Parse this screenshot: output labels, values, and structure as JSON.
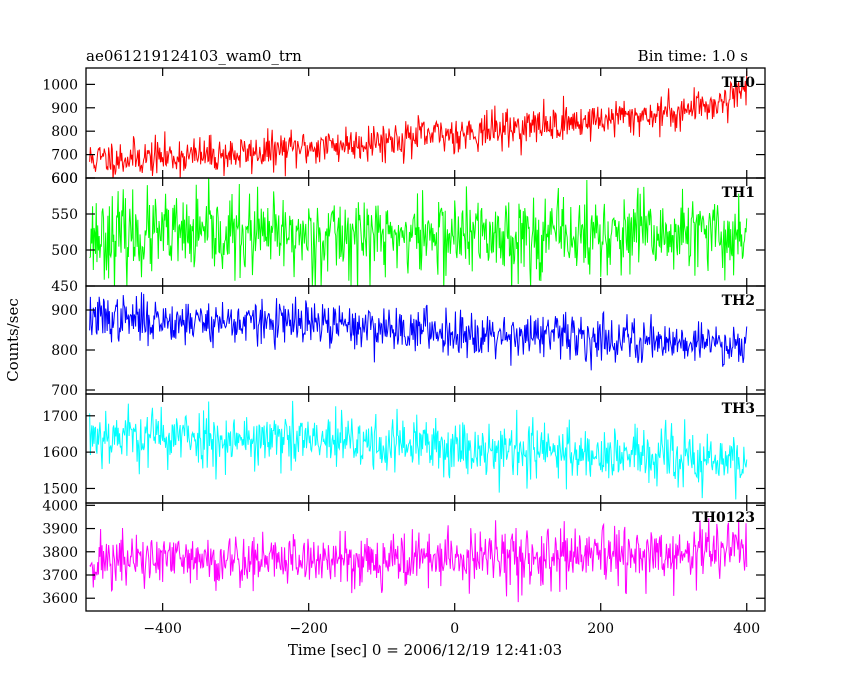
{
  "header": {
    "left_title": "ae061219124103_wam0_trn",
    "right_title": "Bin time: 1.0 s"
  },
  "chart_data": {
    "type": "line",
    "xlabel": "Time [sec] 0 = 2006/12/19 12:41:03",
    "ylabel": "Counts/sec",
    "xlim": [
      -505,
      425
    ],
    "x_ticks": [
      -400,
      -200,
      0,
      200,
      400
    ],
    "x_tick_labels": [
      "−400",
      "−200",
      "0",
      "200",
      "400"
    ],
    "x_range": [
      -500,
      400
    ],
    "bin_time_s": 1.0,
    "panels": [
      {
        "name": "TH0",
        "color": "#ff0000",
        "ylim": [
          600,
          1070
        ],
        "ticks": [
          600,
          700,
          800,
          900,
          1000
        ],
        "trend": [
          [
            -500,
            680
          ],
          [
            -300,
            700
          ],
          [
            -100,
            760
          ],
          [
            100,
            820
          ],
          [
            300,
            880
          ],
          [
            370,
            930
          ],
          [
            400,
            1000
          ]
        ],
        "noise": 40,
        "seed": 11
      },
      {
        "name": "TH1",
        "color": "#00ff00",
        "ylim": [
          450,
          600
        ],
        "ticks": [
          450,
          500,
          550,
          600
        ],
        "trend": [
          [
            -500,
            520
          ],
          [
            400,
            520
          ]
        ],
        "noise": 28,
        "seed": 23
      },
      {
        "name": "TH2",
        "color": "#0000ff",
        "ylim": [
          690,
          960
        ],
        "ticks": [
          700,
          800,
          900
        ],
        "trend": [
          [
            -500,
            880
          ],
          [
            -200,
            865
          ],
          [
            0,
            845
          ],
          [
            200,
            830
          ],
          [
            400,
            815
          ]
        ],
        "noise": 28,
        "seed": 37
      },
      {
        "name": "TH3",
        "color": "#00ffff",
        "ylim": [
          1460,
          1760
        ],
        "ticks": [
          1500,
          1600,
          1700
        ],
        "trend": [
          [
            -500,
            1650
          ],
          [
            -200,
            1630
          ],
          [
            0,
            1615
          ],
          [
            200,
            1595
          ],
          [
            400,
            1570
          ]
        ],
        "noise": 40,
        "seed": 53
      },
      {
        "name": "TH0123",
        "color": "#ff00ff",
        "ylim": [
          3545,
          4010
        ],
        "ticks": [
          3600,
          3700,
          3800,
          3900,
          4000
        ],
        "trend": [
          [
            -500,
            3760
          ],
          [
            0,
            3770
          ],
          [
            300,
            3780
          ],
          [
            400,
            3830
          ]
        ],
        "noise": 60,
        "seed": 71
      }
    ]
  }
}
